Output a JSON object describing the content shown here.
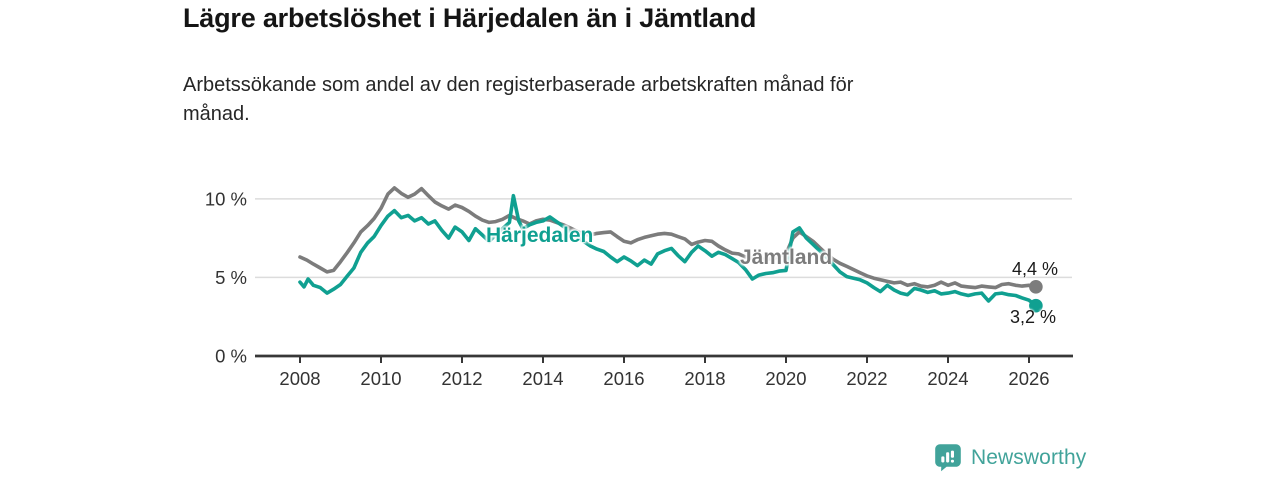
{
  "header": {
    "title": "Lägre arbetslöshet i Härjedalen än i Jämtland",
    "subtitle": "Arbetssökande som andel av den registerbaserade arbetskraften månad för månad."
  },
  "chart_data": {
    "type": "line",
    "title": "Lägre arbetslöshet i Härjedalen än i Jämtland",
    "subtitle": "Arbetssökande som andel av den registerbaserade arbetskraften månad för månad.",
    "unit": "%",
    "grid": "horizontal",
    "legend_position": "inline-labels",
    "x_axis": {
      "ticks": [
        "2008",
        "2010",
        "2012",
        "2014",
        "2016",
        "2018",
        "2020",
        "2022",
        "2024",
        "2026"
      ],
      "tick_values": [
        2008,
        2010,
        2012,
        2014,
        2016,
        2018,
        2020,
        2022,
        2024,
        2026
      ],
      "range": [
        2006.9,
        2027.1
      ]
    },
    "y_axis": {
      "ticks": [
        {
          "value": 0,
          "label": "0 %"
        },
        {
          "value": 5,
          "label": "5 %"
        },
        {
          "value": 10,
          "label": "10 %"
        }
      ],
      "range": [
        0,
        11.8
      ]
    },
    "series": [
      {
        "name": "Jämtland",
        "color": "#7c7c7c",
        "end_label": "4,4 %",
        "end_value": 4.4,
        "points": [
          [
            2008.0,
            6.3
          ],
          [
            2008.17,
            6.1
          ],
          [
            2008.33,
            5.85
          ],
          [
            2008.5,
            5.6
          ],
          [
            2008.67,
            5.35
          ],
          [
            2008.83,
            5.45
          ],
          [
            2009.0,
            6.0
          ],
          [
            2009.17,
            6.6
          ],
          [
            2009.33,
            7.2
          ],
          [
            2009.5,
            7.9
          ],
          [
            2009.67,
            8.3
          ],
          [
            2009.83,
            8.75
          ],
          [
            2010.0,
            9.4
          ],
          [
            2010.17,
            10.3
          ],
          [
            2010.33,
            10.7
          ],
          [
            2010.5,
            10.35
          ],
          [
            2010.67,
            10.1
          ],
          [
            2010.83,
            10.3
          ],
          [
            2011.0,
            10.65
          ],
          [
            2011.17,
            10.2
          ],
          [
            2011.33,
            9.8
          ],
          [
            2011.5,
            9.55
          ],
          [
            2011.67,
            9.35
          ],
          [
            2011.83,
            9.6
          ],
          [
            2012.0,
            9.45
          ],
          [
            2012.17,
            9.2
          ],
          [
            2012.33,
            8.9
          ],
          [
            2012.5,
            8.65
          ],
          [
            2012.67,
            8.5
          ],
          [
            2012.83,
            8.55
          ],
          [
            2013.0,
            8.7
          ],
          [
            2013.17,
            8.95
          ],
          [
            2013.33,
            8.75
          ],
          [
            2013.5,
            8.6
          ],
          [
            2013.67,
            8.4
          ],
          [
            2013.83,
            8.6
          ],
          [
            2014.0,
            8.7
          ],
          [
            2014.17,
            8.65
          ],
          [
            2014.33,
            8.5
          ],
          [
            2014.5,
            8.35
          ],
          [
            2014.67,
            8.15
          ],
          [
            2014.83,
            7.95
          ],
          [
            2015.0,
            7.75
          ],
          [
            2015.17,
            7.7
          ],
          [
            2015.33,
            7.8
          ],
          [
            2015.5,
            7.85
          ],
          [
            2015.67,
            7.9
          ],
          [
            2015.83,
            7.6
          ],
          [
            2016.0,
            7.3
          ],
          [
            2016.17,
            7.2
          ],
          [
            2016.33,
            7.4
          ],
          [
            2016.5,
            7.55
          ],
          [
            2016.67,
            7.65
          ],
          [
            2016.83,
            7.75
          ],
          [
            2017.0,
            7.8
          ],
          [
            2017.17,
            7.75
          ],
          [
            2017.33,
            7.6
          ],
          [
            2017.5,
            7.45
          ],
          [
            2017.67,
            7.1
          ],
          [
            2017.83,
            7.25
          ],
          [
            2018.0,
            7.35
          ],
          [
            2018.17,
            7.3
          ],
          [
            2018.33,
            7.0
          ],
          [
            2018.5,
            6.75
          ],
          [
            2018.67,
            6.55
          ],
          [
            2018.83,
            6.5
          ],
          [
            2019.0,
            6.3
          ],
          [
            2019.25,
            6.2
          ],
          [
            2019.5,
            6.15
          ],
          [
            2019.75,
            6.25
          ],
          [
            2020.0,
            6.5
          ],
          [
            2020.17,
            7.5
          ],
          [
            2020.33,
            7.9
          ],
          [
            2020.5,
            7.6
          ],
          [
            2020.67,
            7.3
          ],
          [
            2020.83,
            6.9
          ],
          [
            2021.0,
            6.5
          ],
          [
            2021.17,
            6.15
          ],
          [
            2021.33,
            5.9
          ],
          [
            2021.5,
            5.7
          ],
          [
            2021.67,
            5.5
          ],
          [
            2021.83,
            5.3
          ],
          [
            2022.0,
            5.1
          ],
          [
            2022.17,
            4.95
          ],
          [
            2022.33,
            4.85
          ],
          [
            2022.5,
            4.75
          ],
          [
            2022.67,
            4.65
          ],
          [
            2022.83,
            4.7
          ],
          [
            2023.0,
            4.5
          ],
          [
            2023.17,
            4.6
          ],
          [
            2023.33,
            4.45
          ],
          [
            2023.5,
            4.4
          ],
          [
            2023.67,
            4.5
          ],
          [
            2023.83,
            4.7
          ],
          [
            2024.0,
            4.5
          ],
          [
            2024.17,
            4.65
          ],
          [
            2024.33,
            4.45
          ],
          [
            2024.5,
            4.4
          ],
          [
            2024.67,
            4.35
          ],
          [
            2024.83,
            4.45
          ],
          [
            2025.0,
            4.4
          ],
          [
            2025.17,
            4.35
          ],
          [
            2025.33,
            4.55
          ],
          [
            2025.5,
            4.6
          ],
          [
            2025.67,
            4.5
          ],
          [
            2025.83,
            4.45
          ],
          [
            2026.0,
            4.5
          ],
          [
            2026.17,
            4.4
          ]
        ]
      },
      {
        "name": "Härjedalen",
        "color": "#10a091",
        "end_label": "3,2 %",
        "end_value": 3.2,
        "points": [
          [
            2008.0,
            4.7
          ],
          [
            2008.1,
            4.4
          ],
          [
            2008.2,
            4.9
          ],
          [
            2008.33,
            4.5
          ],
          [
            2008.5,
            4.35
          ],
          [
            2008.67,
            4.0
          ],
          [
            2008.83,
            4.25
          ],
          [
            2009.0,
            4.55
          ],
          [
            2009.17,
            5.1
          ],
          [
            2009.33,
            5.6
          ],
          [
            2009.5,
            6.6
          ],
          [
            2009.67,
            7.2
          ],
          [
            2009.83,
            7.6
          ],
          [
            2010.0,
            8.3
          ],
          [
            2010.17,
            8.9
          ],
          [
            2010.33,
            9.25
          ],
          [
            2010.5,
            8.8
          ],
          [
            2010.67,
            8.95
          ],
          [
            2010.83,
            8.6
          ],
          [
            2011.0,
            8.8
          ],
          [
            2011.17,
            8.4
          ],
          [
            2011.33,
            8.6
          ],
          [
            2011.5,
            8.0
          ],
          [
            2011.67,
            7.5
          ],
          [
            2011.83,
            8.2
          ],
          [
            2012.0,
            7.9
          ],
          [
            2012.17,
            7.35
          ],
          [
            2012.33,
            8.1
          ],
          [
            2012.5,
            7.7
          ],
          [
            2012.67,
            7.3
          ],
          [
            2012.83,
            7.7
          ],
          [
            2013.0,
            8.1
          ],
          [
            2013.17,
            8.5
          ],
          [
            2013.27,
            10.2
          ],
          [
            2013.4,
            8.6
          ],
          [
            2013.5,
            8.1
          ],
          [
            2013.67,
            8.35
          ],
          [
            2013.83,
            8.5
          ],
          [
            2014.0,
            8.6
          ],
          [
            2014.17,
            8.85
          ],
          [
            2014.33,
            8.55
          ],
          [
            2014.5,
            8.25
          ],
          [
            2014.67,
            7.9
          ],
          [
            2014.83,
            7.6
          ],
          [
            2015.0,
            7.3
          ],
          [
            2015.17,
            7.0
          ],
          [
            2015.33,
            6.8
          ],
          [
            2015.5,
            6.65
          ],
          [
            2015.67,
            6.3
          ],
          [
            2015.83,
            6.0
          ],
          [
            2016.0,
            6.3
          ],
          [
            2016.17,
            6.05
          ],
          [
            2016.33,
            5.75
          ],
          [
            2016.5,
            6.1
          ],
          [
            2016.67,
            5.85
          ],
          [
            2016.83,
            6.5
          ],
          [
            2017.0,
            6.7
          ],
          [
            2017.17,
            6.85
          ],
          [
            2017.33,
            6.4
          ],
          [
            2017.5,
            6.0
          ],
          [
            2017.67,
            6.6
          ],
          [
            2017.83,
            7.0
          ],
          [
            2018.0,
            6.7
          ],
          [
            2018.17,
            6.35
          ],
          [
            2018.33,
            6.6
          ],
          [
            2018.5,
            6.45
          ],
          [
            2018.67,
            6.2
          ],
          [
            2018.83,
            5.95
          ],
          [
            2019.0,
            5.5
          ],
          [
            2019.17,
            4.9
          ],
          [
            2019.33,
            5.15
          ],
          [
            2019.5,
            5.25
          ],
          [
            2019.67,
            5.3
          ],
          [
            2019.83,
            5.4
          ],
          [
            2020.0,
            5.45
          ],
          [
            2020.17,
            7.9
          ],
          [
            2020.33,
            8.15
          ],
          [
            2020.5,
            7.5
          ],
          [
            2020.67,
            7.1
          ],
          [
            2020.83,
            6.7
          ],
          [
            2021.0,
            6.3
          ],
          [
            2021.17,
            5.8
          ],
          [
            2021.33,
            5.35
          ],
          [
            2021.5,
            5.05
          ],
          [
            2021.67,
            4.95
          ],
          [
            2021.83,
            4.85
          ],
          [
            2022.0,
            4.65
          ],
          [
            2022.17,
            4.35
          ],
          [
            2022.33,
            4.1
          ],
          [
            2022.5,
            4.5
          ],
          [
            2022.67,
            4.2
          ],
          [
            2022.83,
            4.0
          ],
          [
            2023.0,
            3.9
          ],
          [
            2023.17,
            4.3
          ],
          [
            2023.33,
            4.2
          ],
          [
            2023.5,
            4.05
          ],
          [
            2023.67,
            4.15
          ],
          [
            2023.83,
            3.95
          ],
          [
            2024.0,
            4.0
          ],
          [
            2024.17,
            4.1
          ],
          [
            2024.33,
            3.95
          ],
          [
            2024.5,
            3.85
          ],
          [
            2024.67,
            3.95
          ],
          [
            2024.83,
            4.0
          ],
          [
            2025.0,
            3.5
          ],
          [
            2025.17,
            3.95
          ],
          [
            2025.33,
            4.0
          ],
          [
            2025.5,
            3.9
          ],
          [
            2025.67,
            3.85
          ],
          [
            2025.83,
            3.7
          ],
          [
            2026.0,
            3.55
          ],
          [
            2026.17,
            3.2
          ]
        ]
      }
    ],
    "colors": {
      "grid": "#dcdcdc",
      "axis": "#373737",
      "tick_text": "#333333",
      "value_text": "#1a1a1a"
    }
  },
  "footer": {
    "brand": "Newsworthy",
    "brand_color": "#41a39a",
    "logo_icon": "speech-bubble-bar-chart-icon"
  }
}
